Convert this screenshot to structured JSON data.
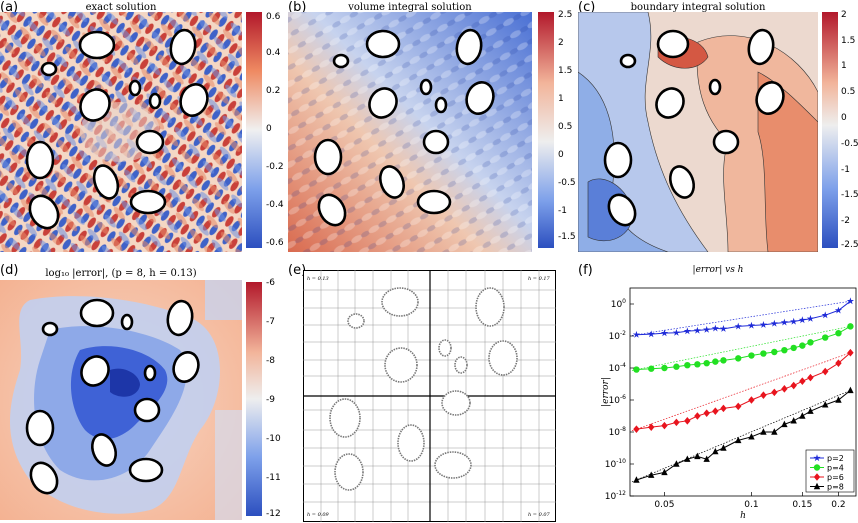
{
  "panels": {
    "a": {
      "label": "(a)",
      "title": "exact solution",
      "colorbar": [
        "0.6",
        "0.4",
        "0.2",
        "0",
        "-0.2",
        "-0.4",
        "-0.6"
      ]
    },
    "b": {
      "label": "(b)",
      "title": "volume integral solution",
      "colorbar": [
        "2.5",
        "2",
        "1.5",
        "1",
        "0.5",
        "0",
        "-0.5",
        "-1",
        "-1.5"
      ]
    },
    "c": {
      "label": "(c)",
      "title": "boundary integral solution",
      "colorbar": [
        "2",
        "1.5",
        "1",
        "0.5",
        "0",
        "-0.5",
        "-1",
        "-1.5",
        "-2",
        "-2.5"
      ]
    },
    "d": {
      "label": "(d)",
      "title": "log₁₀ |error|, (p = 8, h = 0.13)",
      "colorbar": [
        "-6",
        "-7",
        "-8",
        "-9",
        "-10",
        "-11",
        "-12"
      ]
    },
    "e": {
      "label": "(e)",
      "h_labels": [
        "h = 0.13",
        "h = 0.17",
        "h = 0.09",
        "h = 0.07"
      ]
    },
    "f": {
      "label": "(f)"
    }
  },
  "chart_data": {
    "type": "line",
    "title": "|error| vs h",
    "xlabel": "h",
    "ylabel": "|error|",
    "xscale": "log",
    "yscale": "log",
    "xlim": [
      0.038,
      0.23
    ],
    "ylim": [
      1e-12,
      10
    ],
    "x_ticks": [
      "0.05",
      "0.1",
      "0.15",
      "0.2"
    ],
    "y_ticks": [
      "10^0",
      "10^-2",
      "10^-4",
      "10^-6",
      "10^-8",
      "10^-10",
      "10^-12"
    ],
    "legend_position": "bottom-right",
    "series": [
      {
        "name": "p=2",
        "color": "#1f2bd8",
        "marker": "star",
        "x": [
          0.04,
          0.045,
          0.05,
          0.055,
          0.06,
          0.065,
          0.07,
          0.075,
          0.08,
          0.09,
          0.1,
          0.11,
          0.12,
          0.13,
          0.14,
          0.15,
          0.16,
          0.18,
          0.2,
          0.22
        ],
        "y": [
          0.012,
          0.013,
          0.015,
          0.016,
          0.02,
          0.022,
          0.025,
          0.03,
          0.028,
          0.04,
          0.045,
          0.05,
          0.06,
          0.07,
          0.08,
          0.1,
          0.12,
          0.2,
          0.4,
          1.5
        ]
      },
      {
        "name": "p=4",
        "color": "#22e022",
        "marker": "circle",
        "x": [
          0.04,
          0.045,
          0.05,
          0.055,
          0.06,
          0.065,
          0.07,
          0.075,
          0.08,
          0.09,
          0.1,
          0.11,
          0.12,
          0.13,
          0.14,
          0.15,
          0.16,
          0.18,
          0.2,
          0.22
        ],
        "y": [
          8e-05,
          9e-05,
          0.0001,
          0.00012,
          0.00015,
          0.00017,
          0.0002,
          0.00025,
          0.0003,
          0.0004,
          0.0006,
          0.0008,
          0.001,
          0.0013,
          0.0018,
          0.0025,
          0.004,
          0.008,
          0.015,
          0.04
        ]
      },
      {
        "name": "p=6",
        "color": "#e8141e",
        "marker": "diamond",
        "x": [
          0.04,
          0.045,
          0.05,
          0.055,
          0.06,
          0.065,
          0.07,
          0.075,
          0.08,
          0.09,
          0.1,
          0.11,
          0.12,
          0.13,
          0.14,
          0.15,
          0.16,
          0.18,
          0.2,
          0.22
        ],
        "y": [
          1.5e-08,
          2e-08,
          2.5e-08,
          4e-08,
          5e-08,
          1e-07,
          1.5e-07,
          2e-07,
          3e-07,
          4e-07,
          1e-06,
          2e-06,
          3e-06,
          5e-06,
          8e-06,
          1.5e-05,
          2.5e-05,
          6e-05,
          0.0002,
          0.0009
        ]
      },
      {
        "name": "p=8",
        "color": "#000000",
        "marker": "triangle",
        "x": [
          0.04,
          0.045,
          0.05,
          0.055,
          0.06,
          0.065,
          0.07,
          0.075,
          0.08,
          0.09,
          0.1,
          0.11,
          0.12,
          0.13,
          0.14,
          0.15,
          0.16,
          0.18,
          0.2,
          0.22
        ],
        "y": [
          1e-11,
          2e-11,
          3e-11,
          1e-10,
          2e-10,
          3e-10,
          2e-10,
          6e-10,
          1e-09,
          3e-09,
          5e-09,
          1e-08,
          1e-08,
          3e-08,
          5e-08,
          1e-07,
          2e-07,
          5e-07,
          1e-06,
          4e-06
        ]
      }
    ],
    "reference_lines": {
      "style": "dotted",
      "colors": [
        "#1f2bd8",
        "#22e022",
        "#e8141e",
        "#000000"
      ]
    }
  }
}
